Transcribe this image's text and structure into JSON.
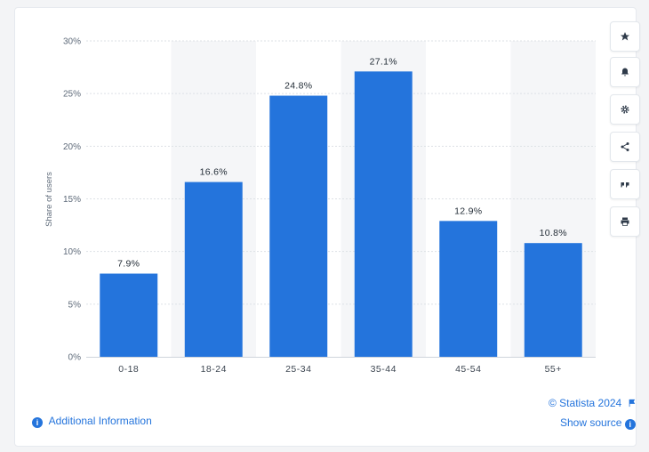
{
  "chart_data": {
    "type": "bar",
    "categories": [
      "0-18",
      "18-24",
      "25-34",
      "35-44",
      "45-54",
      "55+"
    ],
    "values": [
      7.9,
      16.6,
      24.8,
      27.1,
      12.9,
      10.8
    ],
    "data_labels": [
      "7.9%",
      "16.6%",
      "24.8%",
      "27.1%",
      "12.9%",
      "10.8%"
    ],
    "ylabel": "Share of users",
    "ylim": [
      0,
      30
    ],
    "yticks": [
      0,
      5,
      10,
      15,
      20,
      25,
      30
    ],
    "ytick_labels": [
      "0%",
      "5%",
      "10%",
      "15%",
      "20%",
      "25%",
      "30%"
    ],
    "grid": true,
    "bar_color": "#2474dc",
    "alt_band_color": "#f5f6f8"
  },
  "footer": {
    "copyright": "© Statista 2024",
    "show_source": "Show source",
    "additional_info": "Additional Information"
  },
  "toolbar": {
    "buttons": [
      "star-icon",
      "bell-icon",
      "gear-icon",
      "share-icon",
      "quote-icon",
      "print-icon"
    ]
  }
}
